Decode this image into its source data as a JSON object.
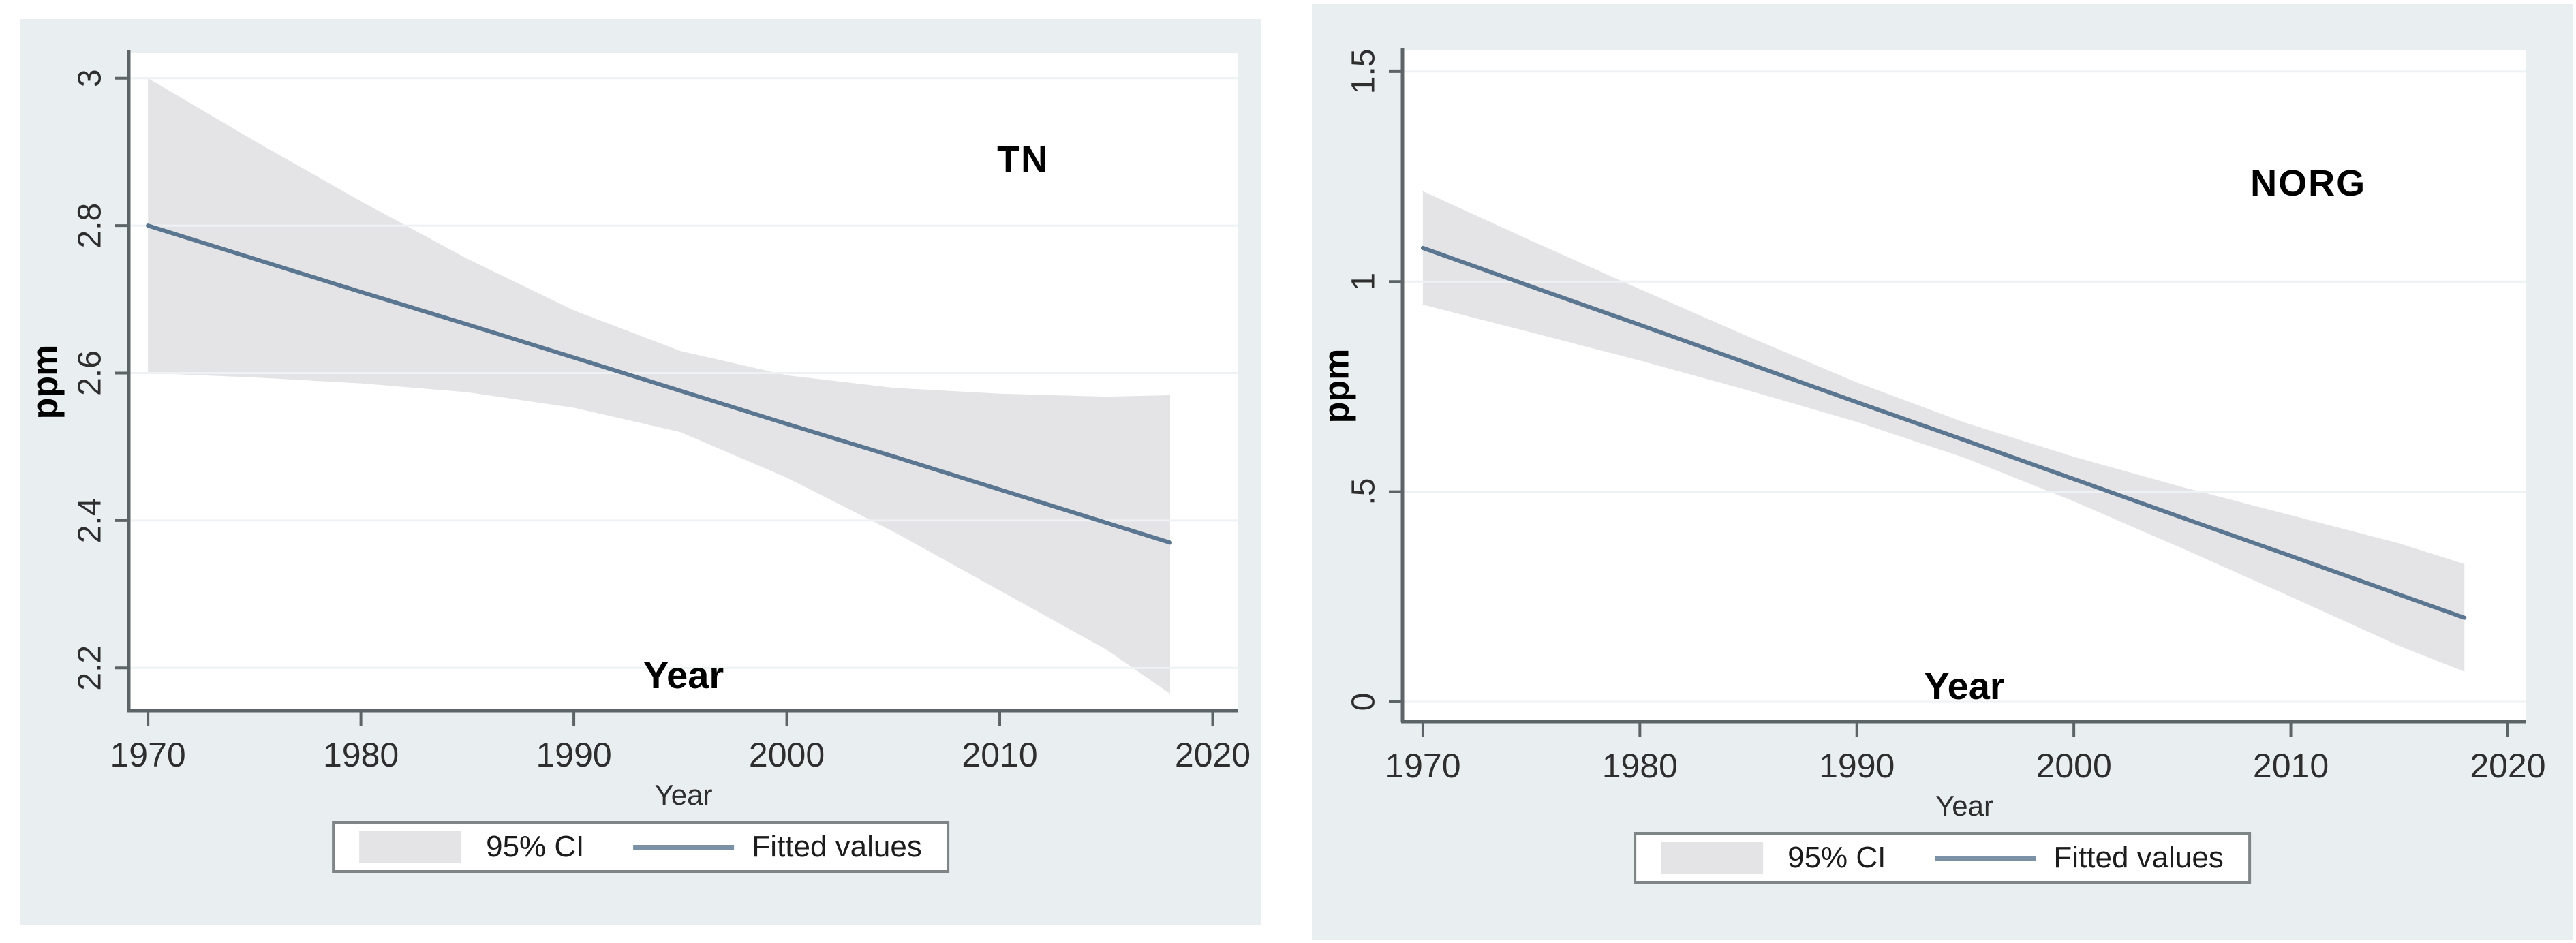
{
  "colors": {
    "page_background": "#ffffff",
    "figure_background": "#e9eef1",
    "plot_background": "#ffffff",
    "grid_line": "#eef2f4",
    "axis_line": "#5c6468",
    "tick_label": "#2e2e2e",
    "title_text": "#000000",
    "ci_band": "#e4e3e6",
    "fitted_line": "#5a7690",
    "legend_border": "#7f8487",
    "legend_background": "#ffffff"
  },
  "legend": {
    "ci_label": "95% CI",
    "fitted_label": "Fitted values"
  },
  "chart_data": [
    {
      "type": "line",
      "title": "TN",
      "ylabel": "ppm",
      "xlabel": "Year",
      "inner_xlabel": "Year",
      "legend_entries": [
        "95% CI",
        "Fitted values"
      ],
      "legend_position": "bottom",
      "grid": "horizontal",
      "xlim": [
        1969.1,
        2021.2
      ],
      "ylim": [
        2.142,
        3.034
      ],
      "xtick_values": [
        1970,
        1980,
        1990,
        2000,
        2010,
        2020
      ],
      "xtick_labels": [
        "1970",
        "1980",
        "1990",
        "2000",
        "2010",
        "2020"
      ],
      "ytick_values": [
        3,
        2.8,
        2.6,
        2.4,
        2.2
      ],
      "ytick_labels": [
        "3",
        "2.8",
        "2.6",
        "2.4",
        "2.2"
      ],
      "x": [
        1970,
        1975,
        1980,
        1985,
        1990,
        1995,
        2000,
        2005,
        2010,
        2015,
        2018
      ],
      "series": [
        {
          "name": "Fitted values",
          "role": "fit",
          "y": [
            2.8,
            2.755,
            2.71,
            2.666,
            2.621,
            2.576,
            2.531,
            2.487,
            2.442,
            2.397,
            2.37
          ]
        },
        {
          "name": "95% CI",
          "role": "confidence-band",
          "upper": [
            3.0,
            2.915,
            2.833,
            2.755,
            2.685,
            2.63,
            2.597,
            2.58,
            2.572,
            2.568,
            2.57
          ],
          "lower": [
            2.6,
            2.594,
            2.586,
            2.574,
            2.553,
            2.52,
            2.458,
            2.385,
            2.305,
            2.225,
            2.165
          ]
        }
      ]
    },
    {
      "type": "line",
      "title": "NORG",
      "ylabel": "ppm",
      "xlabel": "Year",
      "inner_xlabel": "Year",
      "legend_entries": [
        "95% CI",
        "Fitted values"
      ],
      "legend_position": "bottom",
      "grid": "horizontal",
      "xlim": [
        1969.06,
        2020.85
      ],
      "ylim": [
        -0.047,
        1.55
      ],
      "xtick_values": [
        1970,
        1980,
        1990,
        2000,
        2010,
        2020
      ],
      "xtick_labels": [
        "1970",
        "1980",
        "1990",
        "2000",
        "2010",
        "2020"
      ],
      "ytick_values": [
        1.5,
        1,
        0.5,
        0
      ],
      "ytick_labels": [
        "1.5",
        "1",
        ".5",
        "0"
      ],
      "x": [
        1970,
        1975,
        1980,
        1985,
        1990,
        1995,
        2000,
        2005,
        2010,
        2015,
        2018
      ],
      "series": [
        {
          "name": "Fitted values",
          "role": "fit",
          "y": [
            1.08,
            0.988,
            0.897,
            0.805,
            0.713,
            0.622,
            0.53,
            0.438,
            0.347,
            0.255,
            0.2
          ]
        },
        {
          "name": "95% CI",
          "role": "confidence-band",
          "upper": [
            1.215,
            1.097,
            0.982,
            0.869,
            0.76,
            0.664,
            0.583,
            0.511,
            0.444,
            0.377,
            0.328
          ],
          "lower": [
            0.945,
            0.879,
            0.812,
            0.741,
            0.666,
            0.58,
            0.477,
            0.365,
            0.25,
            0.133,
            0.072
          ]
        }
      ]
    }
  ]
}
